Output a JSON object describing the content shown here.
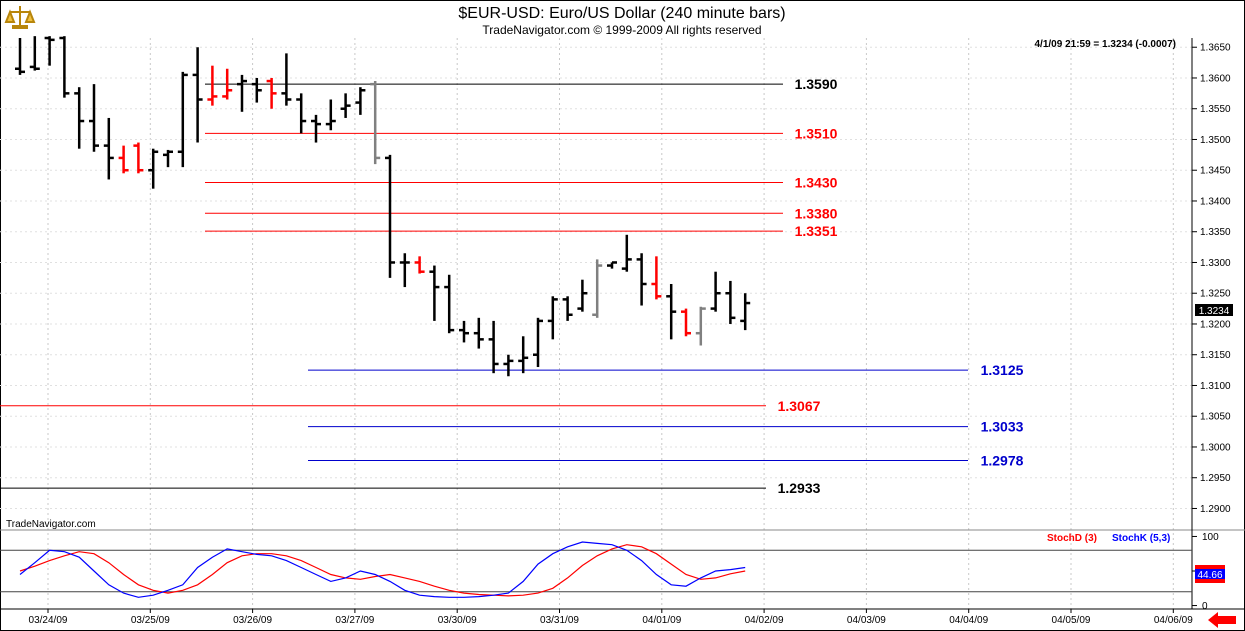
{
  "header": {
    "title": "$EUR-USD:  Euro/US Dollar  (240 minute bars)",
    "subtitle": "TradeNavigator.com © 1999-2009 All rights reserved",
    "readout": "4/1/09 21:59 = 1.3234 (-0.0007)",
    "watermark": "TradeNavigator.com",
    "logo_icon": "scales-icon",
    "nav_arrow_icon": "left-arrow-icon"
  },
  "colors": {
    "black": "#000000",
    "red": "#ff0000",
    "grey": "#808080",
    "blue": "#0000cc",
    "stochD": "#ff0000",
    "stochK": "#0000ff"
  },
  "chart_data": [
    {
      "type": "ohlc",
      "title": "$EUR-USD:  Euro/US Dollar  (240 minute bars)",
      "ylim": [
        1.2865,
        1.3665
      ],
      "y_ticks": [
        "1.2900",
        "1.2950",
        "1.3000",
        "1.3050",
        "1.3100",
        "1.3150",
        "1.3200",
        "1.3250",
        "1.3300",
        "1.3350",
        "1.3400",
        "1.3450",
        "1.3500",
        "1.3550",
        "1.3600",
        "1.3650"
      ],
      "x_ticks": [
        "03/24/09",
        "03/25/09",
        "03/26/09",
        "03/27/09",
        "03/30/09",
        "03/31/09",
        "04/01/09",
        "04/02/09",
        "04/03/09",
        "04/04/09",
        "04/05/09",
        "04/06/09"
      ],
      "last_price": "1.3234",
      "bars": [
        {
          "o": 1.3615,
          "h": 1.3665,
          "l": 1.3605,
          "c": 1.361,
          "col": "black"
        },
        {
          "o": 1.3618,
          "h": 1.3668,
          "l": 1.3612,
          "c": 1.3615,
          "col": "black"
        },
        {
          "o": 1.3665,
          "h": 1.3668,
          "l": 1.362,
          "c": 1.3662,
          "col": "black"
        },
        {
          "o": 1.3665,
          "h": 1.3668,
          "l": 1.3568,
          "c": 1.3575,
          "col": "black"
        },
        {
          "o": 1.3575,
          "h": 1.3585,
          "l": 1.3485,
          "c": 1.353,
          "col": "black"
        },
        {
          "o": 1.353,
          "h": 1.359,
          "l": 1.348,
          "c": 1.349,
          "col": "black"
        },
        {
          "o": 1.349,
          "h": 1.3535,
          "l": 1.3435,
          "c": 1.347,
          "col": "black"
        },
        {
          "o": 1.347,
          "h": 1.349,
          "l": 1.3445,
          "c": 1.345,
          "col": "red"
        },
        {
          "o": 1.349,
          "h": 1.3495,
          "l": 1.3445,
          "c": 1.345,
          "col": "red"
        },
        {
          "o": 1.345,
          "h": 1.3485,
          "l": 1.342,
          "c": 1.348,
          "col": "black"
        },
        {
          "o": 1.3475,
          "h": 1.3483,
          "l": 1.3455,
          "c": 1.348,
          "col": "black"
        },
        {
          "o": 1.348,
          "h": 1.361,
          "l": 1.3455,
          "c": 1.3605,
          "col": "black"
        },
        {
          "o": 1.3605,
          "h": 1.365,
          "l": 1.3495,
          "c": 1.3565,
          "col": "black"
        },
        {
          "o": 1.3565,
          "h": 1.362,
          "l": 1.3555,
          "c": 1.357,
          "col": "red"
        },
        {
          "o": 1.357,
          "h": 1.3615,
          "l": 1.3565,
          "c": 1.358,
          "col": "red"
        },
        {
          "o": 1.359,
          "h": 1.3605,
          "l": 1.3545,
          "c": 1.3595,
          "col": "black"
        },
        {
          "o": 1.359,
          "h": 1.36,
          "l": 1.356,
          "c": 1.358,
          "col": "black"
        },
        {
          "o": 1.3595,
          "h": 1.36,
          "l": 1.355,
          "c": 1.3575,
          "col": "red"
        },
        {
          "o": 1.3575,
          "h": 1.364,
          "l": 1.3555,
          "c": 1.3565,
          "col": "black"
        },
        {
          "o": 1.3565,
          "h": 1.3575,
          "l": 1.351,
          "c": 1.353,
          "col": "black"
        },
        {
          "o": 1.353,
          "h": 1.354,
          "l": 1.3495,
          "c": 1.3525,
          "col": "black"
        },
        {
          "o": 1.3525,
          "h": 1.3565,
          "l": 1.3515,
          "c": 1.353,
          "col": "black"
        },
        {
          "o": 1.355,
          "h": 1.3575,
          "l": 1.3535,
          "c": 1.3555,
          "col": "black"
        },
        {
          "o": 1.356,
          "h": 1.3585,
          "l": 1.354,
          "c": 1.358,
          "col": "black"
        },
        {
          "o": 1.359,
          "h": 1.3595,
          "l": 1.346,
          "c": 1.347,
          "col": "grey"
        },
        {
          "o": 1.347,
          "h": 1.3475,
          "l": 1.3275,
          "c": 1.33,
          "col": "black"
        },
        {
          "o": 1.33,
          "h": 1.3315,
          "l": 1.326,
          "c": 1.33,
          "col": "black"
        },
        {
          "o": 1.33,
          "h": 1.331,
          "l": 1.3282,
          "c": 1.3285,
          "col": "red"
        },
        {
          "o": 1.3285,
          "h": 1.3295,
          "l": 1.3205,
          "c": 1.326,
          "col": "black"
        },
        {
          "o": 1.326,
          "h": 1.328,
          "l": 1.3185,
          "c": 1.319,
          "col": "black"
        },
        {
          "o": 1.319,
          "h": 1.3205,
          "l": 1.317,
          "c": 1.3185,
          "col": "black"
        },
        {
          "o": 1.3185,
          "h": 1.321,
          "l": 1.316,
          "c": 1.3175,
          "col": "black"
        },
        {
          "o": 1.3175,
          "h": 1.3205,
          "l": 1.312,
          "c": 1.3135,
          "col": "black"
        },
        {
          "o": 1.3135,
          "h": 1.315,
          "l": 1.3115,
          "c": 1.314,
          "col": "black"
        },
        {
          "o": 1.314,
          "h": 1.318,
          "l": 1.312,
          "c": 1.3145,
          "col": "black"
        },
        {
          "o": 1.315,
          "h": 1.321,
          "l": 1.313,
          "c": 1.3205,
          "col": "black"
        },
        {
          "o": 1.3205,
          "h": 1.3245,
          "l": 1.3175,
          "c": 1.324,
          "col": "black"
        },
        {
          "o": 1.324,
          "h": 1.3245,
          "l": 1.3205,
          "c": 1.3215,
          "col": "black"
        },
        {
          "o": 1.3225,
          "h": 1.3272,
          "l": 1.322,
          "c": 1.325,
          "col": "black"
        },
        {
          "o": 1.3215,
          "h": 1.3305,
          "l": 1.321,
          "c": 1.3295,
          "col": "grey"
        },
        {
          "o": 1.3295,
          "h": 1.33,
          "l": 1.329,
          "c": 1.33,
          "col": "black"
        },
        {
          "o": 1.329,
          "h": 1.3345,
          "l": 1.3285,
          "c": 1.3305,
          "col": "black"
        },
        {
          "o": 1.3305,
          "h": 1.3315,
          "l": 1.323,
          "c": 1.3265,
          "col": "black"
        },
        {
          "o": 1.3265,
          "h": 1.331,
          "l": 1.324,
          "c": 1.3245,
          "col": "red"
        },
        {
          "o": 1.3245,
          "h": 1.3265,
          "l": 1.3175,
          "c": 1.322,
          "col": "black"
        },
        {
          "o": 1.322,
          "h": 1.3225,
          "l": 1.318,
          "c": 1.3185,
          "col": "red"
        },
        {
          "o": 1.3185,
          "h": 1.3228,
          "l": 1.3165,
          "c": 1.3225,
          "col": "grey"
        },
        {
          "o": 1.3225,
          "h": 1.3285,
          "l": 1.322,
          "c": 1.325,
          "col": "black"
        },
        {
          "o": 1.325,
          "h": 1.327,
          "l": 1.32,
          "c": 1.321,
          "col": "black"
        },
        {
          "o": 1.3205,
          "h": 1.325,
          "l": 1.319,
          "c": 1.3234,
          "col": "black"
        }
      ],
      "levels": [
        {
          "value": 1.359,
          "label": "1.3590",
          "color": "#000000"
        },
        {
          "value": 1.351,
          "label": "1.3510",
          "color": "#ff0000"
        },
        {
          "value": 1.343,
          "label": "1.3430",
          "color": "#ff0000"
        },
        {
          "value": 1.338,
          "label": "1.3380",
          "color": "#ff0000"
        },
        {
          "value": 1.3351,
          "label": "1.3351",
          "color": "#ff0000"
        },
        {
          "value": 1.3125,
          "label": "1.3125",
          "color": "#0000cc"
        },
        {
          "value": 1.3067,
          "label": "1.3067",
          "color": "#ff0000"
        },
        {
          "value": 1.3033,
          "label": "1.3033",
          "color": "#0000cc"
        },
        {
          "value": 1.2978,
          "label": "1.2978",
          "color": "#0000cc"
        },
        {
          "value": 1.2933,
          "label": "1.2933",
          "color": "#000000"
        }
      ]
    },
    {
      "type": "line",
      "ylim": [
        -5,
        105
      ],
      "y_ticks": [
        "100",
        "50",
        "0"
      ],
      "reference_lines": [
        80,
        20
      ],
      "last_value": "44.66",
      "series": [
        {
          "name": "StochD (3)",
          "color": "#ff0000",
          "values": [
            50,
            57,
            65,
            72,
            78,
            75,
            62,
            45,
            30,
            22,
            18,
            22,
            30,
            45,
            62,
            72,
            75,
            75,
            72,
            65,
            55,
            45,
            40,
            38,
            42,
            45,
            40,
            35,
            28,
            22,
            18,
            16,
            15,
            14,
            15,
            18,
            25,
            40,
            58,
            72,
            82,
            88,
            85,
            75,
            60,
            45,
            38,
            40,
            46,
            50
          ]
        },
        {
          "name": "StochK (5,3)",
          "color": "#0000ff",
          "values": [
            45,
            62,
            80,
            78,
            70,
            50,
            30,
            18,
            12,
            15,
            22,
            30,
            55,
            70,
            82,
            78,
            74,
            72,
            65,
            55,
            45,
            35,
            40,
            50,
            45,
            35,
            22,
            15,
            13,
            12,
            12,
            13,
            15,
            18,
            35,
            60,
            75,
            85,
            92,
            90,
            88,
            80,
            65,
            45,
            30,
            28,
            40,
            50,
            52,
            55
          ]
        }
      ]
    }
  ]
}
